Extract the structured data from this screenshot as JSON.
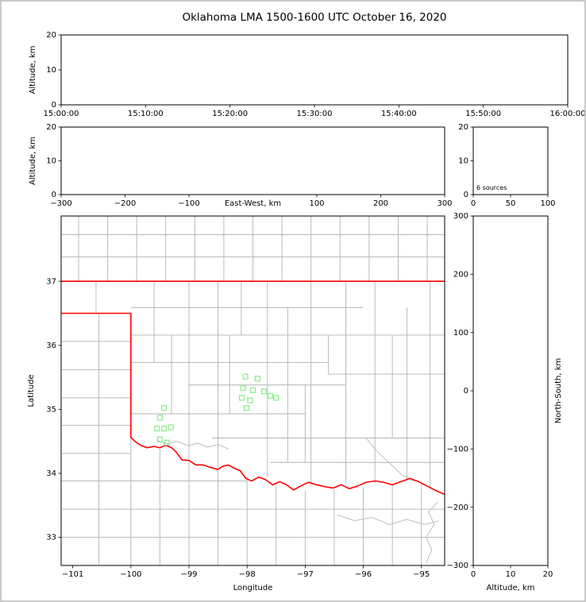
{
  "title": "Oklahoma LMA 1500-1600 UTC October 16, 2020",
  "colors": {
    "state_boundary": "#ff0000",
    "county_lines": "#b3b3b3",
    "river_lines": "#bdbdbd",
    "stations": "#90ee90",
    "axis": "#000000",
    "text": "#000000",
    "background": "#ffffff"
  },
  "chart_data": [
    {
      "id": "time_height",
      "type": "scatter",
      "xlabel": "",
      "ylabel": "Altitude, km",
      "x_tick_labels": [
        "15:00:00",
        "15:10:00",
        "15:20:00",
        "15:30:00",
        "15:40:00",
        "15:50:00",
        "16:00:00"
      ],
      "ylim": [
        0,
        20
      ],
      "yticks": [
        0,
        10,
        20
      ],
      "points": []
    },
    {
      "id": "ew_height",
      "type": "scatter",
      "xlabel": "East-West, km",
      "ylabel": "Altitude, km",
      "xlim": [
        -300,
        300
      ],
      "xticks": [
        -300,
        -200,
        -100,
        100,
        200,
        300
      ],
      "ylim": [
        0,
        20
      ],
      "yticks": [
        0,
        10,
        20
      ],
      "points": []
    },
    {
      "id": "source_histogram",
      "type": "bar",
      "annotation": "6 sources",
      "xlim": [
        0,
        100
      ],
      "xticks": [
        0,
        50,
        100
      ],
      "ylim": [
        0,
        20
      ],
      "yticks": [
        0,
        10,
        20
      ],
      "values": []
    },
    {
      "id": "plan_view",
      "type": "scatter",
      "xlabel": "Longitude",
      "ylabel": "Latitude",
      "xlim": [
        -101.2,
        -94.6
      ],
      "xticks": [
        -101,
        -100,
        -99,
        -98,
        -97,
        -96,
        -95
      ],
      "ylim": [
        32.56,
        38.02
      ],
      "yticks": [
        33,
        34,
        35,
        36,
        37
      ],
      "station_squares": [
        [
          -99.43,
          35.02
        ],
        [
          -99.5,
          34.87
        ],
        [
          -99.55,
          34.7
        ],
        [
          -99.43,
          34.7
        ],
        [
          -99.31,
          34.72
        ],
        [
          -99.5,
          34.53
        ],
        [
          -99.38,
          34.48
        ],
        [
          -98.03,
          35.51
        ],
        [
          -97.82,
          35.48
        ],
        [
          -98.07,
          35.33
        ],
        [
          -97.9,
          35.3
        ],
        [
          -97.71,
          35.28
        ],
        [
          -98.09,
          35.18
        ],
        [
          -97.95,
          35.14
        ],
        [
          -97.6,
          35.21
        ],
        [
          -97.5,
          35.18
        ],
        [
          -98.01,
          35.02
        ]
      ]
    },
    {
      "id": "ns_height",
      "type": "scatter",
      "xlabel": "Altitude, km",
      "ylabel": "North-South, km",
      "xlim": [
        0,
        20
      ],
      "xticks": [
        0,
        10,
        20
      ],
      "ylim": [
        -300,
        300
      ],
      "yticks": [
        -300,
        -200,
        -100,
        0,
        100,
        200,
        300
      ],
      "points": []
    }
  ],
  "map_layers": {
    "state_boundary_segments": [
      [
        -101.2,
        37,
        -94.6,
        37
      ],
      [
        -101.2,
        36.5,
        -100,
        36.5
      ],
      [
        -100,
        36.5,
        -100,
        34.56
      ]
    ],
    "red_river": [
      [
        -100,
        34.56
      ],
      [
        -99.93,
        34.5
      ],
      [
        -99.84,
        34.44
      ],
      [
        -99.72,
        34.4
      ],
      [
        -99.6,
        34.42
      ],
      [
        -99.5,
        34.4
      ],
      [
        -99.4,
        34.44
      ],
      [
        -99.3,
        34.4
      ],
      [
        -99.22,
        34.33
      ],
      [
        -99.12,
        34.21
      ],
      [
        -99.0,
        34.2
      ],
      [
        -98.88,
        34.13
      ],
      [
        -98.75,
        34.13
      ],
      [
        -98.62,
        34.09
      ],
      [
        -98.5,
        34.06
      ],
      [
        -98.42,
        34.11
      ],
      [
        -98.32,
        34.13
      ],
      [
        -98.22,
        34.08
      ],
      [
        -98.12,
        34.04
      ],
      [
        -98.02,
        33.92
      ],
      [
        -97.92,
        33.88
      ],
      [
        -97.8,
        33.94
      ],
      [
        -97.68,
        33.9
      ],
      [
        -97.56,
        33.82
      ],
      [
        -97.44,
        33.87
      ],
      [
        -97.32,
        33.82
      ],
      [
        -97.2,
        33.74
      ],
      [
        -97.08,
        33.8
      ],
      [
        -96.94,
        33.86
      ],
      [
        -96.8,
        33.82
      ],
      [
        -96.66,
        33.79
      ],
      [
        -96.52,
        33.77
      ],
      [
        -96.38,
        33.82
      ],
      [
        -96.24,
        33.76
      ],
      [
        -96.1,
        33.8
      ],
      [
        -95.95,
        33.86
      ],
      [
        -95.8,
        33.88
      ],
      [
        -95.65,
        33.86
      ],
      [
        -95.5,
        33.82
      ],
      [
        -95.35,
        33.87
      ],
      [
        -95.2,
        33.92
      ],
      [
        -95.05,
        33.87
      ],
      [
        -94.9,
        33.8
      ],
      [
        -94.75,
        33.73
      ],
      [
        -94.6,
        33.67
      ]
    ],
    "county_segments": [
      [
        -101.2,
        37.38,
        -94.6,
        37.38
      ],
      [
        -101.2,
        37.73,
        -94.6,
        37.73
      ],
      [
        -100.9,
        37,
        -100.9,
        38.02
      ],
      [
        -100.4,
        37,
        -100.4,
        38.02
      ],
      [
        -99.9,
        37,
        -99.9,
        38.02
      ],
      [
        -99.4,
        37,
        -99.4,
        38.02
      ],
      [
        -98.9,
        37,
        -98.9,
        38.02
      ],
      [
        -98.4,
        37,
        -98.4,
        38.02
      ],
      [
        -97.9,
        37,
        -97.9,
        38.02
      ],
      [
        -97.4,
        37,
        -97.4,
        38.02
      ],
      [
        -96.9,
        37,
        -96.9,
        38.02
      ],
      [
        -96.4,
        37,
        -96.4,
        38.02
      ],
      [
        -95.9,
        37,
        -95.9,
        38.02
      ],
      [
        -95.4,
        37,
        -95.4,
        38.02
      ],
      [
        -94.9,
        37,
        -94.9,
        38.02
      ],
      [
        -101.2,
        36.06,
        -100,
        36.06
      ],
      [
        -101.2,
        35.62,
        -100,
        35.62
      ],
      [
        -101.2,
        35.18,
        -100,
        35.18
      ],
      [
        -101.2,
        34.75,
        -100,
        34.75
      ],
      [
        -101.2,
        34.31,
        -100,
        34.31
      ],
      [
        -100.55,
        36.5,
        -100.55,
        32.56
      ],
      [
        -100,
        34.56,
        -100,
        32.56
      ],
      [
        -101.2,
        33.88,
        -98.0,
        33.88
      ],
      [
        -101.2,
        33.44,
        -94.6,
        33.44
      ],
      [
        -101.2,
        33.0,
        -94.6,
        33.0
      ],
      [
        -99.5,
        34.38,
        -99.5,
        32.56
      ],
      [
        -99.0,
        34.18,
        -99.0,
        32.56
      ],
      [
        -98.5,
        34.04,
        -98.5,
        32.56
      ],
      [
        -98.0,
        33.95,
        -98.0,
        32.56
      ],
      [
        -97.5,
        33.8,
        -97.5,
        32.56
      ],
      [
        -97.0,
        33.72,
        -97.0,
        32.56
      ],
      [
        -96.5,
        33.75,
        -96.5,
        32.56
      ],
      [
        -96.0,
        33.78,
        -96.0,
        32.56
      ],
      [
        -95.5,
        33.84,
        -95.5,
        32.56
      ],
      [
        -95.0,
        33.85,
        -95.0,
        32.56
      ],
      [
        -100,
        36.59,
        -96.0,
        36.59
      ],
      [
        -100,
        36.16,
        -94.6,
        36.16
      ],
      [
        -100,
        35.73,
        -96.6,
        35.73
      ],
      [
        -96.6,
        35.55,
        -94.6,
        35.55
      ],
      [
        -99.0,
        35.38,
        -96.3,
        35.38
      ],
      [
        -100,
        34.93,
        -97.0,
        34.93
      ],
      [
        -98.6,
        34.55,
        -94.6,
        34.55
      ],
      [
        -97.6,
        34.17,
        -94.6,
        34.17
      ],
      [
        -100.6,
        37,
        -100.6,
        36.5
      ],
      [
        -99.6,
        37,
        -99.6,
        35.73
      ],
      [
        -99.3,
        36.16,
        -99.3,
        34.93
      ],
      [
        -99.0,
        37,
        -99.0,
        34.21
      ],
      [
        -98.5,
        37,
        -98.5,
        34.08
      ],
      [
        -98.3,
        36.16,
        -98.3,
        34.93
      ],
      [
        -98.1,
        37,
        -98.1,
        36.16
      ],
      [
        -97.65,
        37,
        -97.65,
        33.95
      ],
      [
        -97.3,
        36.59,
        -97.3,
        34.17
      ],
      [
        -97.0,
        35.38,
        -97.0,
        34.17
      ],
      [
        -96.9,
        37,
        -96.9,
        33.8
      ],
      [
        -96.6,
        36.16,
        -96.6,
        35.55
      ],
      [
        -96.3,
        37,
        -96.3,
        33.85
      ],
      [
        -95.8,
        37,
        -95.8,
        33.85
      ],
      [
        -95.5,
        36.16,
        -95.5,
        34.55
      ],
      [
        -95.25,
        36.59,
        -95.25,
        33.9
      ],
      [
        -94.85,
        37,
        -94.85,
        33.75
      ]
    ],
    "rivers": [
      [
        [
          -99.55,
          34.52
        ],
        [
          -99.38,
          34.46
        ],
        [
          -99.2,
          34.5
        ],
        [
          -99.02,
          34.43
        ],
        [
          -98.85,
          34.47
        ],
        [
          -98.68,
          34.41
        ],
        [
          -98.5,
          34.45
        ],
        [
          -98.32,
          34.38
        ]
      ],
      [
        [
          -95.95,
          34.55
        ],
        [
          -95.82,
          34.4
        ],
        [
          -95.68,
          34.27
        ],
        [
          -95.5,
          34.12
        ],
        [
          -95.33,
          33.97
        ],
        [
          -95.12,
          33.88
        ]
      ],
      [
        [
          -96.45,
          33.35
        ],
        [
          -96.15,
          33.26
        ],
        [
          -95.85,
          33.31
        ],
        [
          -95.55,
          33.2
        ],
        [
          -95.25,
          33.28
        ],
        [
          -94.95,
          33.2
        ],
        [
          -94.7,
          33.26
        ]
      ],
      [
        [
          -94.72,
          33.55
        ],
        [
          -94.88,
          33.4
        ],
        [
          -94.78,
          33.2
        ],
        [
          -94.92,
          33.0
        ],
        [
          -94.82,
          32.8
        ],
        [
          -94.92,
          32.6
        ]
      ]
    ]
  }
}
